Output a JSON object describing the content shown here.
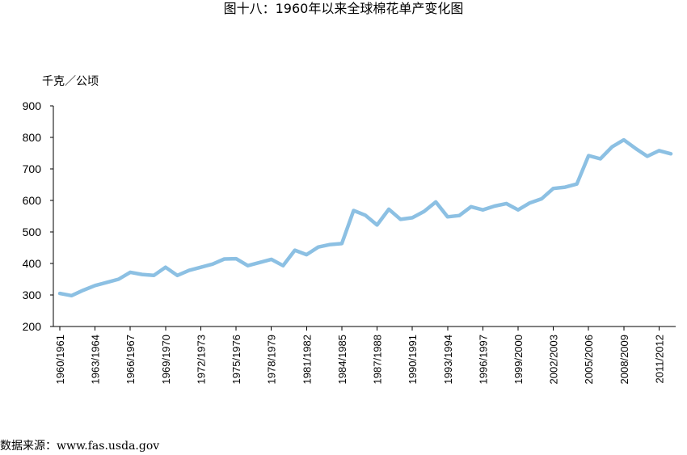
{
  "title": "图十八：1960年以来全球棉花单产变化图",
  "source": "数据来源：www.fas.usda.gov",
  "colors": {
    "line": "#8CC0E3",
    "axis": "#000000"
  },
  "chart_data": {
    "type": "line",
    "title": "图十八：1960年以来全球棉花单产变化图",
    "ylabel": "千克／公顷",
    "xlabel": "",
    "ylim": [
      200,
      900
    ],
    "yticks": [
      200,
      300,
      400,
      500,
      600,
      700,
      800,
      900
    ],
    "grid": false,
    "x": [
      "1960/1961",
      "1961/1962",
      "1962/1963",
      "1963/1964",
      "1964/1965",
      "1965/1966",
      "1966/1967",
      "1967/1968",
      "1968/1969",
      "1969/1970",
      "1970/1971",
      "1971/1972",
      "1972/1973",
      "1973/1974",
      "1974/1975",
      "1975/1976",
      "1976/1977",
      "1977/1978",
      "1978/1979",
      "1979/1980",
      "1980/1981",
      "1981/1982",
      "1982/1983",
      "1983/1984",
      "1984/1985",
      "1985/1986",
      "1986/1987",
      "1987/1988",
      "1988/1989",
      "1989/1990",
      "1990/1991",
      "1991/1992",
      "1992/1993",
      "1993/1994",
      "1994/1995",
      "1995/1996",
      "1996/1997",
      "1997/1998",
      "1998/1999",
      "1999/2000",
      "2000/2001",
      "2001/2002",
      "2002/2003",
      "2003/2004",
      "2004/2005",
      "2005/2006",
      "2006/2007",
      "2007/2008",
      "2008/2009",
      "2009/2010",
      "2010/2011",
      "2011/2012",
      "2012/2013"
    ],
    "tick_labels": [
      "1960/1961",
      "1963/1964",
      "1966/1967",
      "1969/1970",
      "1972/1973",
      "1975/1976",
      "1978/1979",
      "1981/1982",
      "1984/1985",
      "1987/1988",
      "1990/1991",
      "1993/1994",
      "1996/1997",
      "1999/2000",
      "2002/2003",
      "2005/2006",
      "2008/2009",
      "2011/2012"
    ],
    "series": [
      {
        "values": [
          305,
          298,
          315,
          330,
          340,
          350,
          372,
          365,
          362,
          388,
          362,
          378,
          388,
          398,
          414,
          415,
          393,
          403,
          413,
          393,
          442,
          428,
          452,
          460,
          463,
          568,
          553,
          522,
          572,
          540,
          545,
          565,
          595,
          548,
          552,
          580,
          570,
          582,
          590,
          570,
          592,
          605,
          638,
          642,
          652,
          742,
          732,
          770,
          792,
          765,
          740,
          758,
          748
        ]
      }
    ]
  }
}
